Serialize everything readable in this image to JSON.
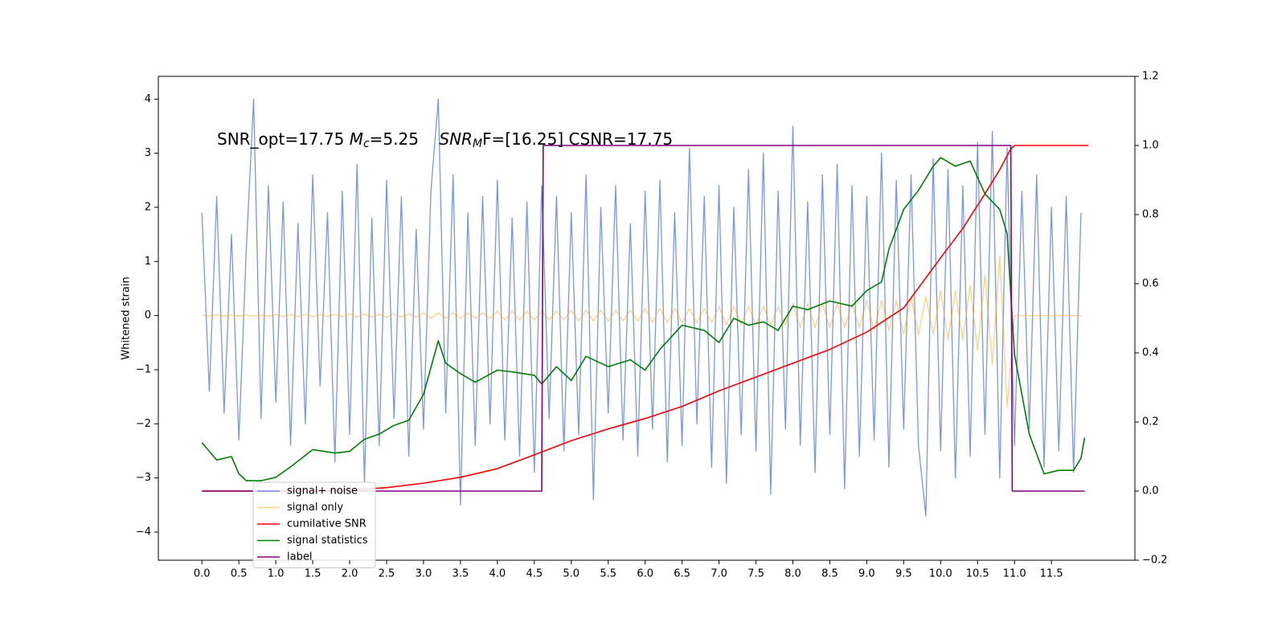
{
  "chart_data": {
    "type": "line",
    "annotation": [
      "SNR_opt=17.75 ",
      "M",
      "c",
      "=5.25    ",
      "SNR",
      "M",
      "F=[16.25] CSNR=17.75"
    ],
    "ylabel": "Whitened strain",
    "xlim": [
      -0.59,
      12.63
    ],
    "ylim": [
      -4.52,
      4.42
    ],
    "y2lim": [
      -0.2,
      1.2
    ],
    "xticks": [
      {
        "value": 0,
        "label": "0.0"
      },
      {
        "value": 0.5,
        "label": "0.5"
      },
      {
        "value": 1,
        "label": "1.0"
      },
      {
        "value": 1.5,
        "label": "1.5"
      },
      {
        "value": 2,
        "label": "2.0"
      },
      {
        "value": 2.5,
        "label": "2.5"
      },
      {
        "value": 3,
        "label": "3.0"
      },
      {
        "value": 3.5,
        "label": "3.5"
      },
      {
        "value": 4,
        "label": "4.0"
      },
      {
        "value": 4.5,
        "label": "4.5"
      },
      {
        "value": 5,
        "label": "5.0"
      },
      {
        "value": 5.5,
        "label": "5.5"
      },
      {
        "value": 6,
        "label": "6.0"
      },
      {
        "value": 6.5,
        "label": "6.5"
      },
      {
        "value": 7,
        "label": "7.0"
      },
      {
        "value": 7.5,
        "label": "7.5"
      },
      {
        "value": 8,
        "label": "8.0"
      },
      {
        "value": 8.5,
        "label": "8.5"
      },
      {
        "value": 9,
        "label": "9.0"
      },
      {
        "value": 9.5,
        "label": "9.5"
      },
      {
        "value": 10,
        "label": "10.0"
      },
      {
        "value": 10.5,
        "label": "10.5"
      },
      {
        "value": 11,
        "label": "11.0"
      },
      {
        "value": 11.5,
        "label": "11.5"
      }
    ],
    "yticks": [
      {
        "value": -4,
        "label": "−4"
      },
      {
        "value": -3,
        "label": "−3"
      },
      {
        "value": -2,
        "label": "−2"
      },
      {
        "value": -1,
        "label": "−1"
      },
      0,
      1,
      2,
      3,
      4
    ],
    "y2ticks": [
      {
        "value": -0.2,
        "label": "−0.2"
      },
      {
        "value": 0,
        "label": "0.0"
      },
      0.2,
      0.4,
      0.6,
      0.8,
      {
        "value": 1,
        "label": "1.0"
      },
      1.2
    ],
    "x": [
      0,
      0.1,
      0.2,
      0.3,
      0.4,
      0.5,
      0.6,
      0.7,
      0.8,
      0.9,
      1,
      1.1,
      1.2,
      1.3,
      1.4,
      1.5,
      1.6,
      1.7,
      1.8,
      1.9,
      2,
      2.1,
      2.2,
      2.3,
      2.4,
      2.5,
      2.6,
      2.7,
      2.8,
      2.9,
      3,
      3.1,
      3.2,
      3.3,
      3.4,
      3.5,
      3.6,
      3.7,
      3.8,
      3.9,
      4,
      4.1,
      4.2,
      4.3,
      4.4,
      4.5,
      4.6,
      4.7,
      4.8,
      4.9,
      5,
      5.1,
      5.2,
      5.3,
      5.4,
      5.5,
      5.6,
      5.7,
      5.8,
      5.9,
      6,
      6.1,
      6.2,
      6.3,
      6.4,
      6.5,
      6.6,
      6.7,
      6.8,
      6.9,
      7,
      7.1,
      7.2,
      7.3,
      7.4,
      7.5,
      7.6,
      7.7,
      7.8,
      7.9,
      8,
      8.1,
      8.2,
      8.3,
      8.4,
      8.5,
      8.6,
      8.7,
      8.8,
      8.9,
      9,
      9.1,
      9.2,
      9.3,
      9.4,
      9.5,
      9.6,
      9.7,
      9.8,
      9.9,
      10,
      10.1,
      10.2,
      10.3,
      10.4,
      10.5,
      10.6,
      10.7,
      10.8,
      10.9,
      11,
      11.1,
      11.2,
      11.3,
      11.4,
      11.5,
      11.6,
      11.7,
      11.8,
      11.9
    ],
    "series": [
      {
        "name": "signal+ noise",
        "color": "#4169e1",
        "values": [
          1.9,
          -1.4,
          2.2,
          -1.8,
          1.5,
          -2.3,
          1.2,
          4.0,
          -1.9,
          2.4,
          -1.6,
          2.1,
          -2.4,
          1.7,
          -2.0,
          2.6,
          -1.3,
          1.9,
          -2.7,
          2.3,
          -2.2,
          2.8,
          -3.1,
          1.8,
          -2.4,
          2.5,
          -1.9,
          2.2,
          -2.6,
          1.6,
          -2.1,
          2.3,
          4.0,
          -1.8,
          2.6,
          -3.5,
          1.9,
          -2.4,
          2.2,
          -2.0,
          2.5,
          -2.3,
          1.8,
          -2.6,
          2.1,
          -2.9,
          2.4,
          -1.9,
          2.2,
          -2.5,
          1.9,
          -2.2,
          2.6,
          -3.4,
          2.0,
          -1.8,
          2.4,
          -2.3,
          1.7,
          -2.6,
          2.3,
          -2.1,
          2.5,
          -2.7,
          1.9,
          -2.4,
          3.1,
          -2.0,
          2.2,
          -2.8,
          2.4,
          -3.1,
          2.0,
          -2.2,
          2.7,
          -2.5,
          3.0,
          -3.3,
          2.3,
          -2.1,
          3.5,
          -2.4,
          2.1,
          -2.9,
          2.6,
          -2.2,
          2.8,
          -3.2,
          2.4,
          -2.6,
          2.2,
          -2.3,
          3.0,
          -2.8,
          2.5,
          -2.1,
          2.6,
          -2.4,
          -3.7,
          2.9,
          -2.5,
          2.7,
          -3.0,
          2.4,
          -2.6,
          3.2,
          -2.2,
          3.4,
          -3.0,
          3.1,
          -2.4,
          2.3,
          -2.1,
          2.6,
          -2.8,
          2.0,
          -2.5,
          2.2,
          -2.9,
          1.9
        ]
      },
      {
        "name": "signal only",
        "color": "#ffa500",
        "values": [
          0.01,
          -0.01,
          0.01,
          -0.01,
          0.01,
          -0.01,
          0.01,
          -0.01,
          0.01,
          -0.01,
          0.02,
          -0.02,
          0.02,
          -0.02,
          0.02,
          -0.02,
          0.02,
          -0.02,
          0.02,
          -0.02,
          0.03,
          -0.03,
          0.03,
          -0.03,
          0.03,
          -0.03,
          0.03,
          -0.03,
          0.03,
          -0.03,
          0.05,
          -0.05,
          0.05,
          -0.05,
          0.05,
          -0.05,
          0.05,
          -0.05,
          0.05,
          -0.05,
          0.08,
          -0.08,
          0.08,
          -0.08,
          0.08,
          -0.08,
          0.08,
          -0.08,
          0.08,
          -0.08,
          0.1,
          -0.1,
          0.1,
          -0.1,
          0.1,
          -0.1,
          0.1,
          -0.1,
          0.1,
          -0.1,
          0.13,
          -0.13,
          0.13,
          -0.13,
          0.13,
          -0.13,
          0.13,
          -0.13,
          0.13,
          -0.13,
          0.17,
          -0.17,
          0.17,
          -0.17,
          0.17,
          -0.17,
          0.17,
          -0.17,
          0.17,
          -0.17,
          0.22,
          -0.22,
          0.22,
          -0.22,
          0.22,
          -0.22,
          0.22,
          -0.22,
          0.22,
          -0.22,
          0.28,
          -0.28,
          0.28,
          -0.28,
          0.28,
          -0.35,
          0.35,
          -0.35,
          0.35,
          -0.35,
          0.45,
          -0.45,
          0.45,
          -0.45,
          0.55,
          -0.65,
          0.75,
          -0.9,
          1.1,
          -1.7,
          0,
          0,
          0,
          0,
          0,
          0,
          0,
          0,
          0,
          0
        ]
      },
      {
        "name": "cumilative SNR",
        "color": "#ff0000",
        "axis": "y2",
        "x": [
          0,
          1,
          2,
          2.5,
          3,
          3.5,
          4,
          4.5,
          5,
          5.5,
          6,
          6.5,
          7,
          7.5,
          8,
          8.5,
          9,
          9.5,
          10,
          10.3,
          10.6,
          10.8,
          10.95,
          11,
          12
        ],
        "values": [
          0,
          0,
          0.003,
          0.01,
          0.023,
          0.04,
          0.065,
          0.105,
          0.146,
          0.18,
          0.21,
          0.245,
          0.29,
          0.33,
          0.37,
          0.41,
          0.46,
          0.53,
          0.675,
          0.76,
          0.86,
          0.93,
          0.99,
          1,
          1
        ]
      },
      {
        "name": "signal statistics",
        "color": "#008000",
        "axis": "y2",
        "x": [
          0,
          0.2,
          0.4,
          0.5,
          0.6,
          0.8,
          1,
          1.2,
          1.5,
          1.8,
          2,
          2.2,
          2.4,
          2.6,
          2.8,
          3,
          3.2,
          3.3,
          3.5,
          3.7,
          4,
          4.2,
          4.5,
          4.6,
          4.8,
          5,
          5.2,
          5.5,
          5.8,
          6,
          6.2,
          6.5,
          6.8,
          7,
          7.2,
          7.4,
          7.6,
          7.8,
          8,
          8.2,
          8.5,
          8.8,
          9,
          9.2,
          9.3,
          9.5,
          9.7,
          9.9,
          10,
          10.2,
          10.4,
          10.6,
          10.8,
          10.9,
          11,
          11.2,
          11.4,
          11.6,
          11.8,
          11.9,
          11.95
        ],
        "values": [
          0.14,
          0.09,
          0.1,
          0.05,
          0.03,
          0.03,
          0.04,
          0.07,
          0.12,
          0.11,
          0.115,
          0.15,
          0.165,
          0.19,
          0.205,
          0.28,
          0.435,
          0.37,
          0.34,
          0.315,
          0.35,
          0.345,
          0.335,
          0.31,
          0.36,
          0.32,
          0.39,
          0.36,
          0.38,
          0.35,
          0.41,
          0.48,
          0.465,
          0.43,
          0.5,
          0.48,
          0.49,
          0.465,
          0.535,
          0.525,
          0.55,
          0.535,
          0.58,
          0.605,
          0.7,
          0.815,
          0.87,
          0.94,
          0.965,
          0.94,
          0.955,
          0.86,
          0.815,
          0.745,
          0.395,
          0.165,
          0.05,
          0.06,
          0.06,
          0.095,
          0.155
        ]
      },
      {
        "name": "label",
        "color": "#800080",
        "axis": "y2",
        "x": [
          0,
          4.6,
          4.62,
          10.95,
          10.97,
          11.95
        ],
        "values": [
          0,
          0,
          1,
          1,
          0,
          0
        ]
      }
    ]
  }
}
